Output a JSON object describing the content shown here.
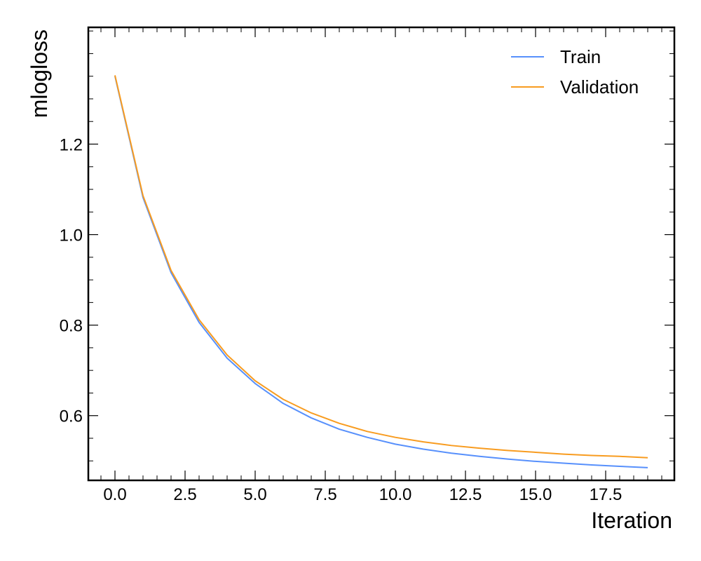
{
  "chart_data": {
    "type": "line",
    "title": "",
    "xlabel": "Iteration",
    "ylabel": "mlogloss",
    "xlim": [
      -0.95,
      19.95
    ],
    "ylim": [
      0.457,
      1.458
    ],
    "xticks": [
      0.0,
      2.5,
      5.0,
      7.5,
      10.0,
      12.5,
      15.0,
      17.5
    ],
    "xtick_labels": [
      "0.0",
      "2.5",
      "5.0",
      "7.5",
      "10.0",
      "12.5",
      "15.0",
      "17.5"
    ],
    "x_minor_step": 0.5,
    "yticks": [
      0.6,
      0.8,
      1.0,
      1.2
    ],
    "ytick_labels": [
      "0.6",
      "0.8",
      "1.0",
      "1.2"
    ],
    "y_minor_step": 0.05,
    "grid": false,
    "legend_position": "top-right",
    "x": [
      0,
      1,
      2,
      3,
      4,
      5,
      6,
      7,
      8,
      9,
      10,
      11,
      12,
      13,
      14,
      15,
      16,
      17,
      18,
      19
    ],
    "series": [
      {
        "name": "Train",
        "color": "#5790fc",
        "values": [
          1.35,
          1.082,
          0.916,
          0.806,
          0.727,
          0.671,
          0.627,
          0.595,
          0.57,
          0.552,
          0.537,
          0.526,
          0.517,
          0.51,
          0.504,
          0.499,
          0.495,
          0.491,
          0.488,
          0.485
        ]
      },
      {
        "name": "Validation",
        "color": "#f89c20",
        "values": [
          1.352,
          1.086,
          0.921,
          0.812,
          0.734,
          0.677,
          0.636,
          0.606,
          0.583,
          0.565,
          0.552,
          0.542,
          0.534,
          0.528,
          0.523,
          0.519,
          0.515,
          0.512,
          0.51,
          0.507
        ]
      }
    ]
  }
}
